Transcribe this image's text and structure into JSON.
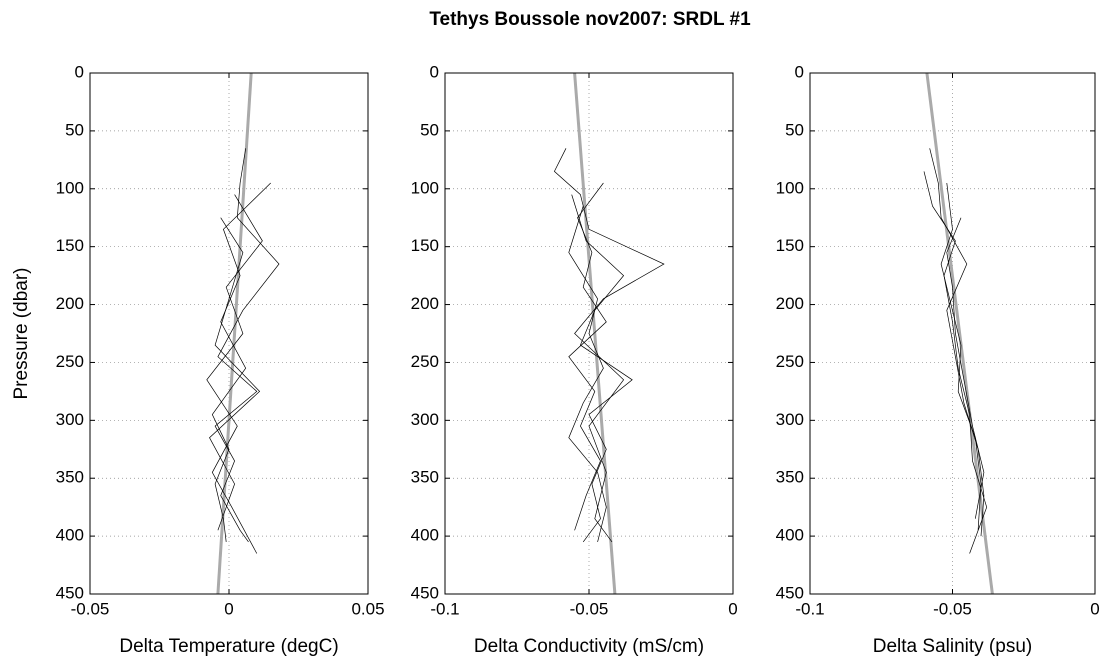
{
  "title": "Tethys Boussole nov2007: SRDL #1",
  "chart_data": [
    {
      "type": "line",
      "xlabel": "Delta Temperature (degC)",
      "ylabel": "Pressure (dbar)",
      "xlim": [
        -0.05,
        0.05
      ],
      "xticks": [
        -0.05,
        0,
        0.05
      ],
      "ylim": [
        450,
        0
      ],
      "yticks": [
        0,
        50,
        100,
        150,
        200,
        250,
        300,
        350,
        400,
        450
      ],
      "grid": true,
      "series": [
        {
          "color": "#aaaaaa",
          "linewidth": 3,
          "x": [
            0.008,
            -0.004
          ],
          "y": [
            0,
            450
          ]
        },
        {
          "color": "#000000",
          "linewidth": 0.7,
          "x": [
            0.006,
            0.004,
            0.003,
            0.018,
            0.005,
            -0.004,
            0.01,
            -0.005,
            0.002,
            -0.003,
            0.004,
            0.007
          ],
          "y": [
            65,
            95,
            125,
            165,
            205,
            245,
            275,
            305,
            335,
            365,
            395,
            405
          ]
        },
        {
          "color": "#000000",
          "linewidth": 0.7,
          "x": [
            0.015,
            -0.002,
            0.004,
            -0.003,
            0.006,
            -0.006,
            0.0,
            -0.005,
            -0.002,
            -0.001
          ],
          "y": [
            95,
            135,
            175,
            215,
            255,
            295,
            325,
            355,
            385,
            405
          ]
        },
        {
          "color": "#000000",
          "linewidth": 0.7,
          "x": [
            0.002,
            0.012,
            -0.001,
            0.005,
            -0.008,
            0.003,
            -0.006,
            0.001,
            0.01
          ],
          "y": [
            105,
            145,
            185,
            225,
            265,
            305,
            345,
            375,
            415
          ]
        },
        {
          "color": "#000000",
          "linewidth": 0.7,
          "x": [
            -0.003,
            0.005,
            0.0,
            -0.005,
            0.011,
            -0.007,
            0.002,
            -0.004
          ],
          "y": [
            125,
            155,
            195,
            235,
            275,
            315,
            355,
            395
          ]
        }
      ]
    },
    {
      "type": "line",
      "xlabel": "Delta Conductivity (mS/cm)",
      "xlim": [
        -0.1,
        0
      ],
      "xticks": [
        -0.1,
        -0.05,
        0
      ],
      "ylim": [
        450,
        0
      ],
      "yticks": [
        0,
        50,
        100,
        150,
        200,
        250,
        300,
        350,
        400,
        450
      ],
      "grid": true,
      "series": [
        {
          "color": "#aaaaaa",
          "linewidth": 3,
          "x": [
            -0.055,
            -0.041
          ],
          "y": [
            0,
            450
          ]
        },
        {
          "color": "#000000",
          "linewidth": 0.7,
          "x": [
            -0.058,
            -0.062,
            -0.053,
            -0.05,
            -0.024,
            -0.045,
            -0.055,
            -0.038,
            -0.05,
            -0.044,
            -0.048,
            -0.042
          ],
          "y": [
            65,
            85,
            105,
            135,
            165,
            195,
            225,
            265,
            305,
            345,
            385,
            405
          ]
        },
        {
          "color": "#000000",
          "linewidth": 0.7,
          "x": [
            -0.045,
            -0.054,
            -0.049,
            -0.052,
            -0.044,
            -0.057,
            -0.048,
            -0.053,
            -0.046,
            -0.051,
            -0.055
          ],
          "y": [
            95,
            125,
            155,
            185,
            215,
            245,
            275,
            305,
            335,
            365,
            395
          ]
        },
        {
          "color": "#000000",
          "linewidth": 0.7,
          "x": [
            -0.056,
            -0.051,
            -0.038,
            -0.048,
            -0.053,
            -0.035,
            -0.05,
            -0.044,
            -0.049,
            -0.046,
            -0.052
          ],
          "y": [
            105,
            145,
            175,
            205,
            235,
            265,
            295,
            325,
            355,
            385,
            405
          ]
        },
        {
          "color": "#000000",
          "linewidth": 0.7,
          "x": [
            -0.052,
            -0.057,
            -0.047,
            -0.05,
            -0.045,
            -0.052,
            -0.057,
            -0.047,
            -0.044,
            -0.047
          ],
          "y": [
            115,
            155,
            195,
            225,
            255,
            285,
            315,
            345,
            375,
            405
          ]
        }
      ]
    },
    {
      "type": "line",
      "xlabel": "Delta Salinity (psu)",
      "xlim": [
        -0.1,
        0
      ],
      "xticks": [
        -0.1,
        -0.05,
        0
      ],
      "ylim": [
        450,
        0
      ],
      "yticks": [
        0,
        50,
        100,
        150,
        200,
        250,
        300,
        350,
        400,
        450
      ],
      "grid": true,
      "series": [
        {
          "color": "#aaaaaa",
          "linewidth": 3,
          "x": [
            -0.059,
            -0.036
          ],
          "y": [
            0,
            450
          ]
        },
        {
          "color": "#000000",
          "linewidth": 0.7,
          "x": [
            -0.058,
            -0.055,
            -0.054,
            -0.045,
            -0.052,
            -0.049,
            -0.046,
            -0.041,
            -0.039,
            -0.04
          ],
          "y": [
            65,
            95,
            125,
            165,
            205,
            245,
            285,
            325,
            365,
            400
          ]
        },
        {
          "color": "#000000",
          "linewidth": 0.7,
          "x": [
            -0.06,
            -0.057,
            -0.049,
            -0.053,
            -0.05,
            -0.048,
            -0.044,
            -0.043,
            -0.038,
            -0.044
          ],
          "y": [
            85,
            115,
            145,
            175,
            215,
            255,
            295,
            335,
            375,
            415
          ]
        },
        {
          "color": "#000000",
          "linewidth": 0.7,
          "x": [
            -0.052,
            -0.05,
            -0.054,
            -0.051,
            -0.047,
            -0.048,
            -0.042,
            -0.04,
            -0.041
          ],
          "y": [
            95,
            135,
            165,
            195,
            235,
            275,
            315,
            355,
            395
          ]
        },
        {
          "color": "#000000",
          "linewidth": 0.7,
          "x": [
            -0.047,
            -0.052,
            -0.05,
            -0.049,
            -0.046,
            -0.043,
            -0.039,
            -0.042
          ],
          "y": [
            125,
            155,
            185,
            225,
            265,
            305,
            345,
            385
          ]
        }
      ]
    }
  ]
}
